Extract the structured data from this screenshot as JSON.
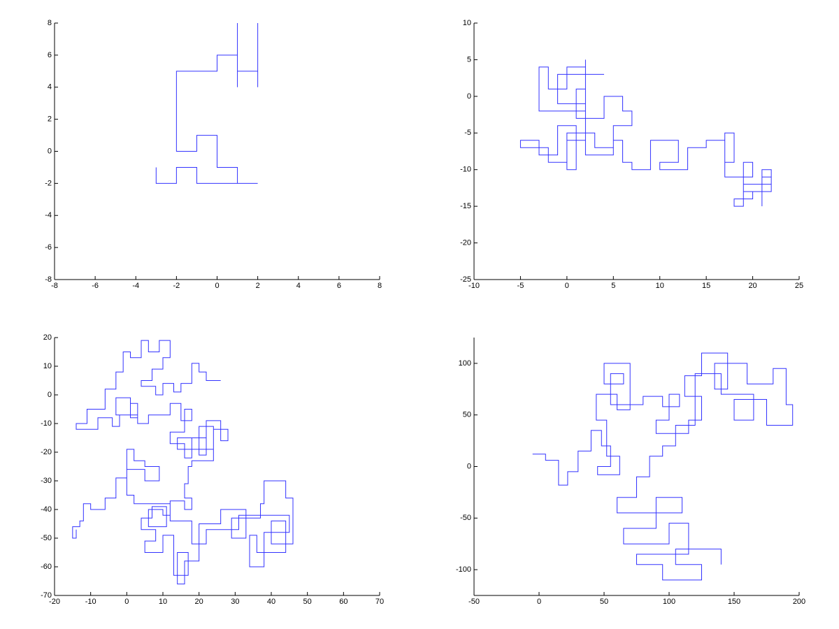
{
  "chart_data": [
    {
      "type": "line",
      "color": "#3333ff",
      "x": [
        -3,
        -3,
        -2,
        -2,
        -1,
        -1,
        2,
        1,
        1,
        0,
        0,
        -1,
        -1,
        -2,
        -2,
        0,
        0,
        1,
        1,
        1,
        1,
        2,
        2,
        2
      ],
      "values": [
        -1,
        -2,
        -2,
        -1,
        -1,
        -2,
        -2,
        -2,
        -1,
        -1,
        1,
        1,
        0,
        0,
        5,
        5,
        6,
        6,
        8,
        4,
        5,
        5,
        4,
        8
      ],
      "xlim": [
        -8,
        8
      ],
      "ylim": [
        -8,
        8
      ],
      "xticks": [
        -8,
        -6,
        -4,
        -2,
        0,
        2,
        4,
        6,
        8
      ],
      "yticks": [
        -8,
        -6,
        -4,
        -2,
        0,
        2,
        4,
        6,
        8
      ]
    },
    {
      "type": "line",
      "color": "#3333ff",
      "x": [
        4,
        -1,
        -1,
        2,
        2,
        1,
        1,
        4,
        4,
        6,
        6,
        7,
        7,
        5,
        5,
        3,
        3,
        0,
        0,
        -2,
        -2,
        -5,
        -5,
        -3,
        -3,
        -1,
        -1,
        1,
        1,
        0,
        0,
        2,
        2,
        -3,
        -3,
        -2,
        -2,
        0,
        0,
        2,
        2,
        2,
        5,
        5,
        6,
        6,
        7,
        7,
        9,
        9,
        12,
        12,
        10,
        10,
        13,
        13,
        15,
        15,
        17,
        17,
        18,
        18,
        17,
        17,
        20,
        20,
        19,
        19,
        21,
        21,
        22,
        22,
        20,
        20,
        18,
        18,
        19,
        19,
        22,
        22,
        21,
        21
      ],
      "values": [
        3,
        3,
        -1,
        -1,
        1,
        1,
        -3,
        -3,
        0,
        0,
        -2,
        -2,
        -4,
        -4,
        -7,
        -7,
        -5,
        -5,
        -9,
        -9,
        -7,
        -7,
        -6,
        -6,
        -8,
        -8,
        -4,
        -4,
        -10,
        -10,
        -6,
        -6,
        -2,
        -2,
        4,
        4,
        1,
        1,
        4,
        4,
        5,
        -8,
        -8,
        -6,
        -6,
        -9,
        -9,
        -10,
        -10,
        -6,
        -6,
        -9,
        -9,
        -10,
        -10,
        -7,
        -7,
        -6,
        -6,
        -9,
        -9,
        -5,
        -5,
        -11,
        -11,
        -9,
        -9,
        -13,
        -13,
        -11,
        -11,
        -13,
        -13,
        -14,
        -14,
        -15,
        -15,
        -12,
        -12,
        -10,
        -10,
        -15
      ],
      "xlim": [
        -10,
        25
      ],
      "ylim": [
        -25,
        10
      ],
      "xticks": [
        -10,
        -5,
        0,
        5,
        10,
        15,
        20,
        25
      ],
      "yticks": [
        -25,
        -20,
        -15,
        -10,
        -5,
        0,
        5,
        10
      ]
    },
    {
      "type": "line",
      "color": "#3333ff",
      "x": [
        26,
        22,
        22,
        20,
        20,
        18,
        18,
        15,
        15,
        13,
        13,
        10,
        10,
        8,
        8,
        4,
        4,
        7,
        7,
        10,
        10,
        12,
        12,
        9,
        9,
        6,
        6,
        4,
        4,
        1,
        1,
        -1,
        -1,
        -3,
        -3,
        -6,
        -6,
        -11,
        -11,
        -14,
        -14,
        -8,
        -8,
        -4,
        -4,
        -2,
        -2,
        1,
        1,
        3,
        3,
        1,
        1,
        -3,
        -3,
        3,
        3,
        6,
        6,
        12,
        12,
        15,
        15,
        18,
        18,
        16,
        16,
        12,
        12,
        16,
        16,
        18,
        18,
        22,
        22,
        20,
        20,
        24,
        24,
        14,
        14,
        22,
        22,
        26,
        26,
        28,
        28,
        24,
        24,
        18,
        18,
        17,
        17,
        16,
        16,
        18,
        18,
        16,
        16,
        12,
        12,
        10,
        10,
        6,
        6,
        11,
        11,
        7,
        7,
        4,
        4,
        8,
        8,
        5,
        5,
        10,
        10,
        13,
        13,
        17,
        17,
        14,
        14,
        16,
        16,
        20,
        20,
        26,
        26,
        33,
        33,
        29,
        29,
        37,
        37,
        38,
        38,
        44,
        44,
        46,
        46,
        40,
        40,
        44,
        44,
        36,
        36,
        34,
        34,
        38,
        38,
        45,
        45,
        31,
        31,
        22,
        22,
        18,
        18,
        12,
        12,
        2,
        2,
        0,
        0,
        5,
        5,
        9,
        9,
        5,
        5,
        2,
        2,
        0,
        0,
        -3,
        -3,
        -6,
        -6,
        -10,
        -10,
        -12,
        -12,
        -13,
        -13,
        -15,
        -15,
        -14,
        -14
      ],
      "values": [
        5,
        5,
        8,
        8,
        11,
        11,
        4,
        4,
        1,
        1,
        4,
        4,
        0,
        0,
        3,
        3,
        5,
        5,
        9,
        9,
        13,
        13,
        19,
        19,
        15,
        15,
        19,
        19,
        13,
        13,
        15,
        15,
        8,
        8,
        2,
        2,
        -5,
        -5,
        -10,
        -10,
        -12,
        -12,
        -8,
        -8,
        -11,
        -11,
        -7,
        -7,
        -3,
        -3,
        -8,
        -8,
        -1,
        -1,
        -7,
        -7,
        -10,
        -10,
        -7,
        -7,
        -3,
        -3,
        -9,
        -9,
        -5,
        -5,
        -13,
        -13,
        -17,
        -17,
        -22,
        -22,
        -15,
        -15,
        -21,
        -21,
        -11,
        -11,
        -19,
        -19,
        -15,
        -15,
        -9,
        -9,
        -16,
        -16,
        -12,
        -12,
        -23,
        -23,
        -25,
        -25,
        -31,
        -31,
        -36,
        -36,
        -40,
        -40,
        -37,
        -37,
        -42,
        -42,
        -40,
        -40,
        -46,
        -46,
        -39,
        -39,
        -43,
        -43,
        -47,
        -47,
        -51,
        -51,
        -55,
        -55,
        -49,
        -49,
        -63,
        -63,
        -55,
        -55,
        -66,
        -66,
        -58,
        -58,
        -45,
        -45,
        -40,
        -40,
        -50,
        -50,
        -43,
        -43,
        -38,
        -38,
        -30,
        -30,
        -36,
        -36,
        -52,
        -52,
        -44,
        -44,
        -55,
        -55,
        -49,
        -49,
        -60,
        -60,
        -48,
        -48,
        -42,
        -42,
        -47,
        -47,
        -52,
        -52,
        -44,
        -44,
        -38,
        -38,
        -35,
        -35,
        -26,
        -26,
        -30,
        -30,
        -25,
        -25,
        -23,
        -23,
        -19,
        -19,
        -29,
        -29,
        -36,
        -36,
        -40,
        -40,
        -38,
        -38,
        -44,
        -44,
        -46,
        -46,
        -50,
        -50,
        -47
      ],
      "xlim": [
        -20,
        70
      ],
      "ylim": [
        -70,
        20
      ],
      "xticks": [
        -20,
        -10,
        0,
        10,
        20,
        30,
        40,
        50,
        60,
        70
      ],
      "yticks": [
        -70,
        -60,
        -50,
        -40,
        -30,
        -20,
        -10,
        0,
        10,
        20
      ]
    },
    {
      "type": "line",
      "color": "#3333ff",
      "x": [
        -5,
        5,
        5,
        15,
        15,
        22,
        22,
        30,
        30,
        40,
        40,
        48,
        48,
        55,
        55,
        45,
        45,
        62,
        62,
        52,
        52,
        44,
        44,
        60,
        60,
        70,
        70,
        50,
        50,
        65,
        65,
        55,
        55,
        80,
        80,
        95,
        95,
        108,
        108,
        100,
        100,
        90,
        90,
        115,
        115,
        125,
        125,
        112,
        112,
        125,
        125,
        145,
        145,
        135,
        135,
        160,
        160,
        180,
        180,
        190,
        190,
        195,
        195,
        175,
        175,
        150,
        150,
        165,
        165,
        140,
        140,
        120,
        120,
        105,
        105,
        95,
        95,
        85,
        85,
        75,
        75,
        60,
        60,
        110,
        110,
        90,
        90,
        65,
        65,
        100,
        100,
        115,
        115,
        75,
        75,
        95,
        95,
        125,
        125,
        105,
        105,
        140,
        140
      ],
      "values": [
        12,
        12,
        6,
        6,
        -18,
        -18,
        -5,
        -5,
        15,
        15,
        35,
        35,
        20,
        20,
        0,
        0,
        -8,
        -8,
        10,
        10,
        45,
        45,
        70,
        70,
        55,
        55,
        100,
        100,
        80,
        80,
        90,
        90,
        60,
        60,
        68,
        68,
        58,
        58,
        70,
        70,
        45,
        45,
        32,
        32,
        45,
        45,
        68,
        68,
        88,
        88,
        110,
        110,
        75,
        75,
        100,
        100,
        80,
        80,
        95,
        95,
        60,
        60,
        40,
        40,
        65,
        65,
        45,
        45,
        70,
        70,
        90,
        90,
        40,
        40,
        20,
        20,
        10,
        10,
        -10,
        -10,
        -30,
        -30,
        -45,
        -45,
        -30,
        -30,
        -60,
        -60,
        -75,
        -75,
        -55,
        -55,
        -85,
        -85,
        -95,
        -95,
        -110,
        -110,
        -95,
        -95,
        -80,
        -80,
        -95
      ],
      "xlim": [
        -50,
        200
      ],
      "ylim": [
        -125,
        125
      ],
      "xticks": [
        -50,
        0,
        50,
        100,
        150,
        200
      ],
      "yticks": [
        -100,
        -50,
        0,
        50,
        100
      ]
    }
  ]
}
